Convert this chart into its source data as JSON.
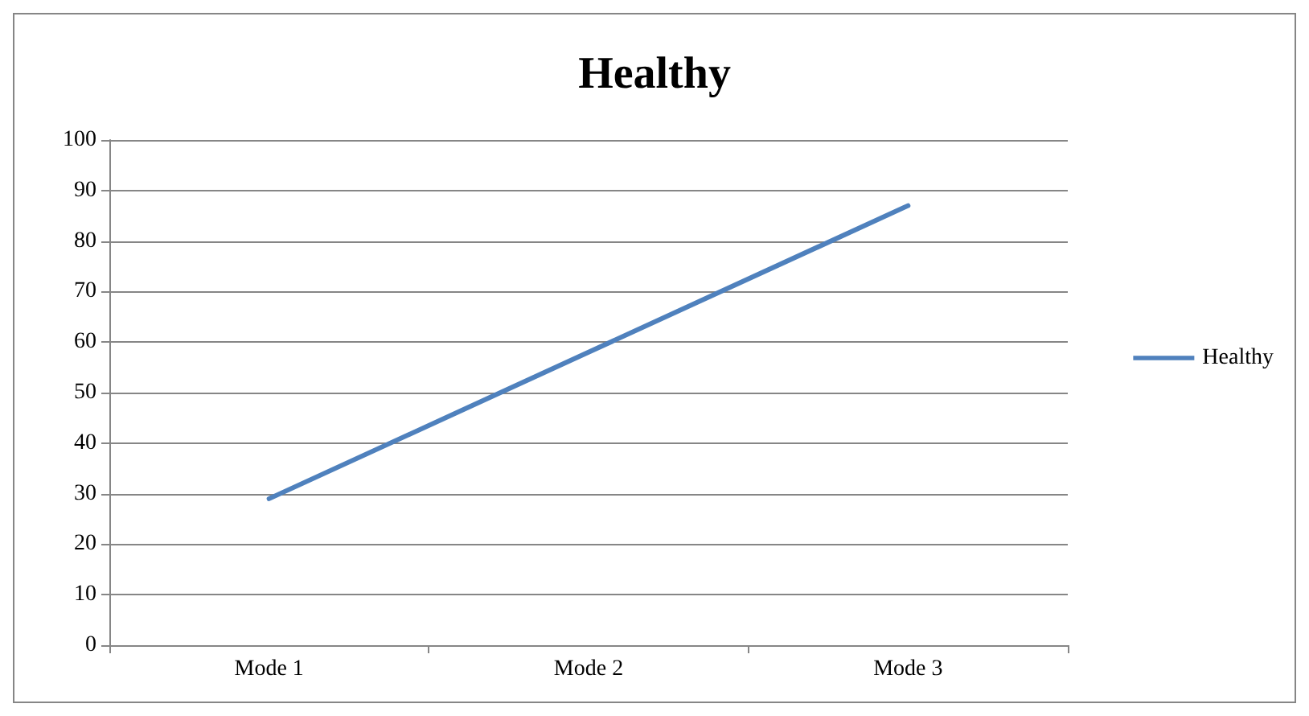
{
  "chart_data": {
    "type": "line",
    "title": "Healthy",
    "categories": [
      "Mode 1",
      "Mode 2",
      "Mode 3"
    ],
    "series": [
      {
        "name": "Healthy",
        "color": "#4f81bd",
        "values": [
          29,
          58,
          87
        ]
      }
    ],
    "ylim": [
      0,
      100
    ],
    "yticks": [
      0,
      10,
      20,
      30,
      40,
      50,
      60,
      70,
      80,
      90,
      100
    ],
    "grid": "y",
    "legend": "right",
    "marker": "none",
    "line_style": "solid"
  }
}
